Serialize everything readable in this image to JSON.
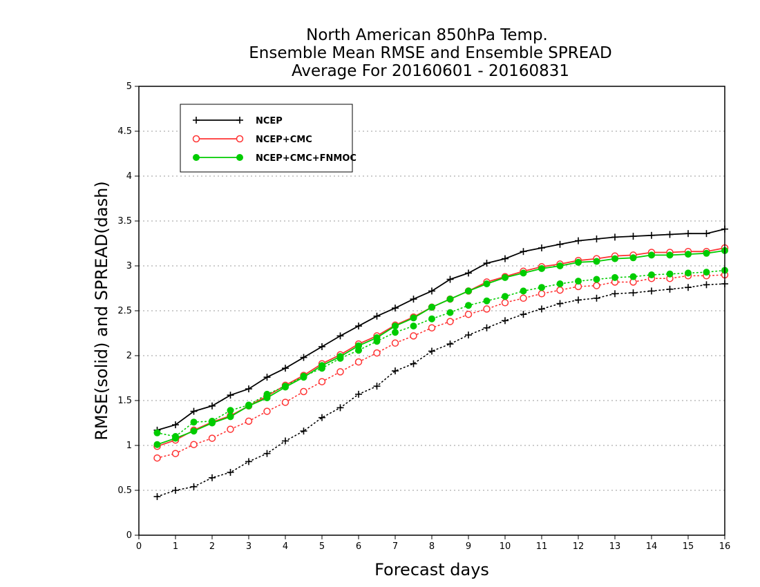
{
  "chart_data": {
    "type": "line",
    "title_lines": [
      "North American 850hPa Temp.",
      "Ensemble Mean RMSE and Ensemble SPREAD",
      "Average For 20160601 - 20160831"
    ],
    "xlabel": "Forecast days",
    "ylabel": "RMSE(solid) and SPREAD(dash)",
    "xlim": [
      0,
      16
    ],
    "ylim": [
      0,
      5
    ],
    "x_ticks": [
      "0",
      "1",
      "2",
      "3",
      "4",
      "5",
      "6",
      "7",
      "8",
      "9",
      "10",
      "11",
      "12",
      "13",
      "14",
      "15",
      "16"
    ],
    "y_ticks": [
      "0",
      "0.5",
      "1",
      "1.5",
      "2",
      "2.5",
      "3",
      "3.5",
      "4",
      "4.5",
      "5"
    ],
    "grid": "horizontal dotted",
    "legend_position": "top-left",
    "x": [
      0.5,
      1,
      1.5,
      2,
      2.5,
      3,
      3.5,
      4,
      4.5,
      5,
      5.5,
      6,
      6.5,
      7,
      7.5,
      8,
      8.5,
      9,
      9.5,
      10,
      10.5,
      11,
      11.5,
      12,
      12.5,
      13,
      13.5,
      14,
      14.5,
      15,
      15.5,
      16
    ],
    "series": [
      {
        "name": "NCEP",
        "color": "#000000",
        "marker": "plus",
        "rmse": [
          1.17,
          1.23,
          1.38,
          1.44,
          1.56,
          1.63,
          1.76,
          1.86,
          1.98,
          2.1,
          2.22,
          2.33,
          2.44,
          2.53,
          2.63,
          2.72,
          2.85,
          2.92,
          3.03,
          3.08,
          3.16,
          3.2,
          3.24,
          3.28,
          3.3,
          3.32,
          3.33,
          3.34,
          3.35,
          3.36,
          3.36,
          3.41
        ],
        "spread": [
          0.43,
          0.5,
          0.54,
          0.64,
          0.7,
          0.82,
          0.91,
          1.05,
          1.16,
          1.31,
          1.42,
          1.57,
          1.66,
          1.83,
          1.91,
          2.05,
          2.13,
          2.23,
          2.31,
          2.39,
          2.46,
          2.52,
          2.58,
          2.62,
          2.64,
          2.69,
          2.7,
          2.72,
          2.74,
          2.76,
          2.79,
          2.8
        ]
      },
      {
        "name": "NCEP+CMC",
        "color": "#ff3333",
        "marker": "open-circle",
        "rmse": [
          0.99,
          1.06,
          1.17,
          1.26,
          1.33,
          1.44,
          1.55,
          1.67,
          1.78,
          1.91,
          2.01,
          2.13,
          2.22,
          2.34,
          2.43,
          2.54,
          2.63,
          2.72,
          2.82,
          2.88,
          2.94,
          2.99,
          3.02,
          3.06,
          3.08,
          3.11,
          3.12,
          3.15,
          3.15,
          3.16,
          3.16,
          3.2
        ],
        "spread": [
          0.86,
          0.91,
          1.01,
          1.08,
          1.18,
          1.27,
          1.38,
          1.48,
          1.6,
          1.71,
          1.82,
          1.93,
          2.03,
          2.14,
          2.22,
          2.31,
          2.38,
          2.46,
          2.52,
          2.59,
          2.64,
          2.69,
          2.73,
          2.77,
          2.78,
          2.82,
          2.82,
          2.86,
          2.86,
          2.89,
          2.89,
          2.9
        ]
      },
      {
        "name": "NCEP+CMC+FNMOC",
        "color": "#00cc00",
        "marker": "filled-circle",
        "rmse": [
          1.01,
          1.08,
          1.16,
          1.25,
          1.32,
          1.44,
          1.53,
          1.65,
          1.76,
          1.89,
          1.99,
          2.11,
          2.2,
          2.33,
          2.42,
          2.54,
          2.63,
          2.72,
          2.8,
          2.87,
          2.92,
          2.97,
          3.0,
          3.04,
          3.05,
          3.08,
          3.09,
          3.12,
          3.12,
          3.13,
          3.14,
          3.17
        ],
        "spread": [
          1.14,
          1.1,
          1.26,
          1.27,
          1.39,
          1.45,
          1.57,
          1.66,
          1.77,
          1.86,
          1.97,
          2.06,
          2.16,
          2.26,
          2.33,
          2.41,
          2.48,
          2.56,
          2.61,
          2.66,
          2.72,
          2.76,
          2.8,
          2.83,
          2.85,
          2.87,
          2.88,
          2.9,
          2.91,
          2.92,
          2.93,
          2.95
        ]
      }
    ]
  }
}
